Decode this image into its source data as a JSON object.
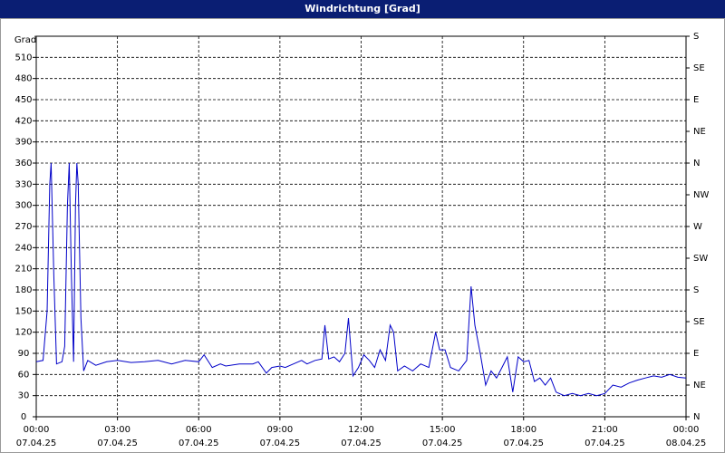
{
  "chart_data": {
    "type": "line",
    "title": "Windrichtung [Grad]",
    "y_label": "Grad",
    "color": "#0000c8",
    "grid": true,
    "xlim": [
      0,
      24
    ],
    "xticks": [
      {
        "value": 0,
        "label": "00:00",
        "date": "07.04.25"
      },
      {
        "value": 3,
        "label": "03:00",
        "date": "07.04.25"
      },
      {
        "value": 6,
        "label": "06:00",
        "date": "07.04.25"
      },
      {
        "value": 9,
        "label": "09:00",
        "date": "07.04.25"
      },
      {
        "value": 12,
        "label": "12:00",
        "date": "07.04.25"
      },
      {
        "value": 15,
        "label": "15:00",
        "date": "07.04.25"
      },
      {
        "value": 18,
        "label": "18:00",
        "date": "07.04.25"
      },
      {
        "value": 21,
        "label": "21:00",
        "date": "07.04.25"
      },
      {
        "value": 24,
        "label": "00:00",
        "date": "08.04.25"
      }
    ],
    "ylim": [
      0,
      540
    ],
    "yticks": [
      0,
      30,
      60,
      90,
      120,
      150,
      180,
      210,
      240,
      270,
      300,
      330,
      360,
      390,
      420,
      450,
      480,
      510
    ],
    "y2lim": [
      0,
      540
    ],
    "y2ticks": [
      {
        "value": 0,
        "label": "N"
      },
      {
        "value": 45,
        "label": "NE"
      },
      {
        "value": 90,
        "label": "E"
      },
      {
        "value": 135,
        "label": "SE"
      },
      {
        "value": 180,
        "label": "S"
      },
      {
        "value": 225,
        "label": "SW"
      },
      {
        "value": 270,
        "label": "W"
      },
      {
        "value": 315,
        "label": "NW"
      },
      {
        "value": 360,
        "label": "N"
      },
      {
        "value": 405,
        "label": "NE"
      },
      {
        "value": 450,
        "label": "E"
      },
      {
        "value": 495,
        "label": "SE"
      },
      {
        "value": 540,
        "label": "S"
      }
    ],
    "x": [
      0,
      0.25,
      0.4,
      0.5,
      0.55,
      0.65,
      0.75,
      0.95,
      1.05,
      1.15,
      1.22,
      1.3,
      1.38,
      1.45,
      1.5,
      1.55,
      1.65,
      1.75,
      1.9,
      2.2,
      2.6,
      3,
      3.5,
      4,
      4.5,
      5,
      5.5,
      6,
      6.2,
      6.5,
      6.8,
      7,
      7.5,
      8,
      8.2,
      8.5,
      8.7,
      9,
      9.2,
      9.5,
      9.8,
      10,
      10.3,
      10.55,
      10.66,
      10.8,
      11,
      11.2,
      11.4,
      11.53,
      11.7,
      11.9,
      12.1,
      12.3,
      12.5,
      12.7,
      12.9,
      13.07,
      13.2,
      13.35,
      13.6,
      13.9,
      14.2,
      14.5,
      14.75,
      14.9,
      15.1,
      15.3,
      15.6,
      15.9,
      16.06,
      16.2,
      16.4,
      16.6,
      16.8,
      17,
      17.2,
      17.4,
      17.6,
      17.8,
      18,
      18.2,
      18.4,
      18.6,
      18.8,
      19,
      19.2,
      19.5,
      19.8,
      20.1,
      20.4,
      20.7,
      21,
      21.3,
      21.6,
      21.9,
      22.2,
      22.5,
      22.8,
      23.1,
      23.4,
      23.7,
      24
    ],
    "values": [
      78,
      80,
      150,
      330,
      360,
      200,
      75,
      78,
      100,
      300,
      360,
      200,
      78,
      300,
      360,
      330,
      140,
      65,
      80,
      73,
      78,
      80,
      77,
      78,
      80,
      75,
      80,
      78,
      88,
      70,
      75,
      72,
      75,
      75,
      78,
      62,
      70,
      72,
      70,
      75,
      80,
      75,
      80,
      82,
      130,
      82,
      85,
      78,
      90,
      140,
      58,
      70,
      88,
      80,
      70,
      95,
      80,
      130,
      120,
      65,
      72,
      65,
      75,
      70,
      120,
      95,
      95,
      70,
      65,
      80,
      185,
      130,
      90,
      45,
      65,
      55,
      70,
      85,
      35,
      85,
      78,
      80,
      50,
      55,
      45,
      55,
      35,
      30,
      33,
      30,
      33,
      30,
      33,
      45,
      42,
      48,
      52,
      55,
      58,
      56,
      60,
      56,
      55
    ]
  }
}
